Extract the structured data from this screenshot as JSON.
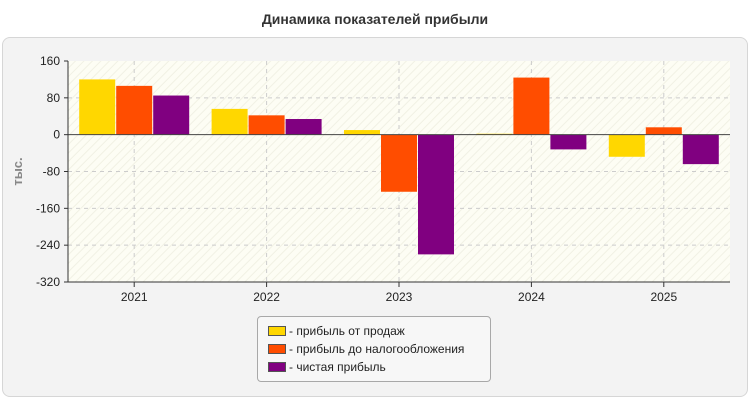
{
  "chart_data": {
    "type": "bar",
    "title": "Динамика показателей прибыли",
    "ylabel": "тыс.",
    "xlabel": "",
    "categories": [
      "2021",
      "2022",
      "2023",
      "2024",
      "2025"
    ],
    "ylim": [
      -320,
      160
    ],
    "yticks": [
      160,
      80,
      0,
      -80,
      -160,
      -240,
      -320
    ],
    "grid": true,
    "legend_position": "bottom-center",
    "series": [
      {
        "name": "прибыль от продаж",
        "color": "#ffd700",
        "values": [
          120,
          56,
          10,
          2,
          -48
        ]
      },
      {
        "name": "прибыль до налогообложения",
        "color": "#ff4d00",
        "values": [
          106,
          42,
          -124,
          124,
          16
        ]
      },
      {
        "name": "чистая прибыль",
        "color": "#800080",
        "values": [
          85,
          34,
          -260,
          -32,
          -64
        ]
      }
    ]
  }
}
